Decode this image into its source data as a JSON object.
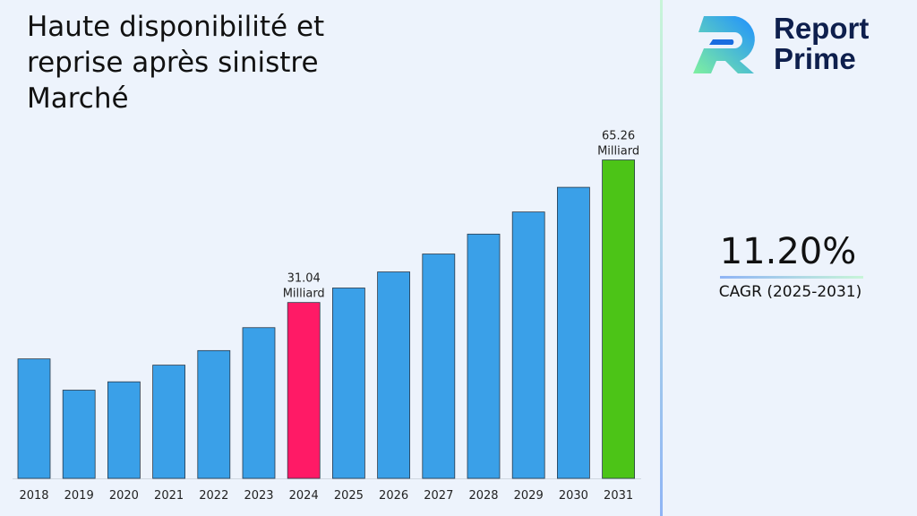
{
  "title": "Haute disponibilité et reprise après sinistre Marché",
  "logo": {
    "line1": "Report",
    "line2": "Prime"
  },
  "cagr": {
    "value": "11.20%",
    "label": "CAGR (2025-2031)"
  },
  "colors": {
    "bar": "#3aa0e8",
    "highlight_2024": "#ff1a66",
    "highlight_2031": "#4cc417"
  },
  "chart_data": {
    "type": "bar",
    "categories": [
      "2018",
      "2019",
      "2020",
      "2021",
      "2022",
      "2023",
      "2024",
      "2025",
      "2026",
      "2027",
      "2028",
      "2029",
      "2030",
      "2031"
    ],
    "values": [
      17.5,
      10.0,
      12.0,
      16.0,
      19.5,
      25.0,
      31.04,
      34.52,
      38.38,
      42.68,
      47.46,
      52.77,
      58.69,
      65.26
    ],
    "data_labels": [
      {
        "category": "2024",
        "line1": "31.04",
        "line2": "Milliard"
      },
      {
        "category": "2031",
        "line1": "65.26",
        "line2": "Milliard"
      }
    ],
    "unit": "Milliard",
    "xlabel": "",
    "ylabel": "",
    "grid": false,
    "legend": "none"
  }
}
